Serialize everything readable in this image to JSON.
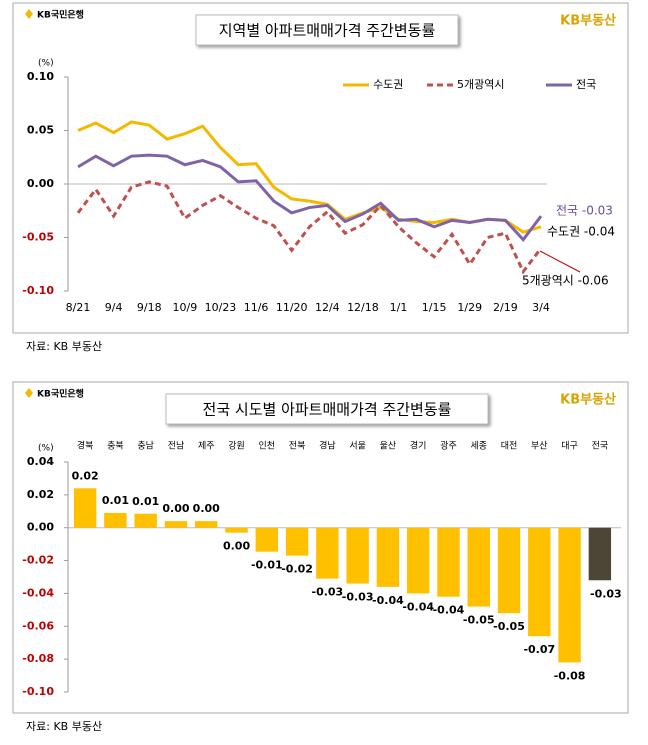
{
  "chart_data": [
    {
      "type": "line",
      "logo": "KB국민은행",
      "brand": "KB부동산",
      "title": "지역별 아파트매매가격 주간변동률",
      "y_unit": "(%)",
      "categories": [
        "8/21",
        null,
        "9/4",
        null,
        "9/18",
        null,
        "10/9",
        null,
        "10/23",
        null,
        "11/6",
        null,
        "11/20",
        null,
        "12/4",
        null,
        "12/18",
        null,
        "1/1",
        null,
        "1/15",
        null,
        "1/29",
        null,
        "2/19",
        null,
        "3/4"
      ],
      "series": [
        {
          "name": "수도권",
          "color": "#f5b800",
          "dashed": false,
          "values": [
            0.05,
            0.057,
            0.048,
            0.058,
            0.055,
            0.042,
            0.047,
            0.054,
            0.034,
            0.018,
            0.019,
            -0.003,
            -0.014,
            -0.016,
            -0.019,
            -0.033,
            -0.027,
            -0.022,
            -0.033,
            -0.035,
            -0.036,
            -0.033,
            -0.036,
            -0.033,
            -0.034,
            -0.045,
            -0.04
          ]
        },
        {
          "name": "5개광역시",
          "color": "#c0504d",
          "dashed": true,
          "values": [
            -0.027,
            -0.005,
            -0.03,
            -0.003,
            0.002,
            -0.002,
            -0.032,
            -0.02,
            -0.011,
            -0.022,
            -0.032,
            -0.039,
            -0.062,
            -0.04,
            -0.026,
            -0.046,
            -0.038,
            -0.02,
            -0.04,
            -0.055,
            -0.068,
            -0.047,
            -0.075,
            -0.05,
            -0.046,
            -0.082,
            -0.06
          ]
        },
        {
          "name": "전국",
          "color": "#7f63a8",
          "dashed": false,
          "values": [
            0.016,
            0.026,
            0.017,
            0.026,
            0.027,
            0.026,
            0.018,
            0.022,
            0.016,
            0.002,
            0.003,
            -0.016,
            -0.027,
            -0.022,
            -0.02,
            -0.035,
            -0.028,
            -0.018,
            -0.034,
            -0.033,
            -0.04,
            -0.034,
            -0.036,
            -0.033,
            -0.034,
            -0.052,
            -0.03
          ]
        }
      ],
      "annotations": [
        "전국 -0.03",
        "수도권 -0.04",
        "5개광역시 -0.06"
      ],
      "ylim": [
        -0.1,
        0.1
      ],
      "yticks": [
        {
          "value": 0.1,
          "label": "0.10"
        },
        0.05,
        {
          "value": 0,
          "label": "0.00"
        },
        -0.05,
        {
          "value": -0.1,
          "label": "-0.10"
        }
      ],
      "legend": "top-right",
      "source": "자료: KB 부동산"
    },
    {
      "type": "bar",
      "logo": "KB국민은행",
      "brand": "KB부동산",
      "title": "전국 시도별 아파트매매가격 주간변동률",
      "y_unit": "(%)",
      "categories": [
        "경북",
        "충북",
        "충남",
        "전남",
        "제주",
        "강원",
        "인천",
        "전북",
        "경남",
        "서울",
        "울산",
        "경기",
        "광주",
        "세종",
        "대전",
        "부산",
        "대구",
        "전국"
      ],
      "values": [
        0.024,
        0.009,
        0.0085,
        0.004,
        0.004,
        -0.003,
        -0.0146,
        -0.017,
        -0.031,
        -0.034,
        -0.036,
        -0.04,
        -0.042,
        -0.048,
        -0.052,
        -0.066,
        -0.082,
        -0.032
      ],
      "value_labels": [
        "0.02",
        "0.01",
        "0.01",
        "0.00",
        "0.00",
        "0.00",
        "-0.01",
        "-0.02",
        "-0.03",
        "-0.03",
        "-0.04",
        "-0.04",
        "-0.04",
        "-0.05",
        "-0.05",
        "-0.07",
        "-0.08",
        "-0.03"
      ],
      "colors": [
        "#ffc000",
        "#ffc000",
        "#ffc000",
        "#ffc000",
        "#ffc000",
        "#ffc000",
        "#ffc000",
        "#ffc000",
        "#ffc000",
        "#ffc000",
        "#ffc000",
        "#ffc000",
        "#ffc000",
        "#ffc000",
        "#ffc000",
        "#ffc000",
        "#ffc000",
        "#4d4636"
      ],
      "ylim": [
        -0.1,
        0.04
      ],
      "yticks": [
        0.04,
        0.02,
        {
          "value": 0,
          "label": "0.00"
        },
        -0.02,
        -0.04,
        -0.06,
        -0.08,
        {
          "value": -0.1,
          "label": "-0.10"
        }
      ],
      "source": "자료: KB 부동산"
    }
  ]
}
